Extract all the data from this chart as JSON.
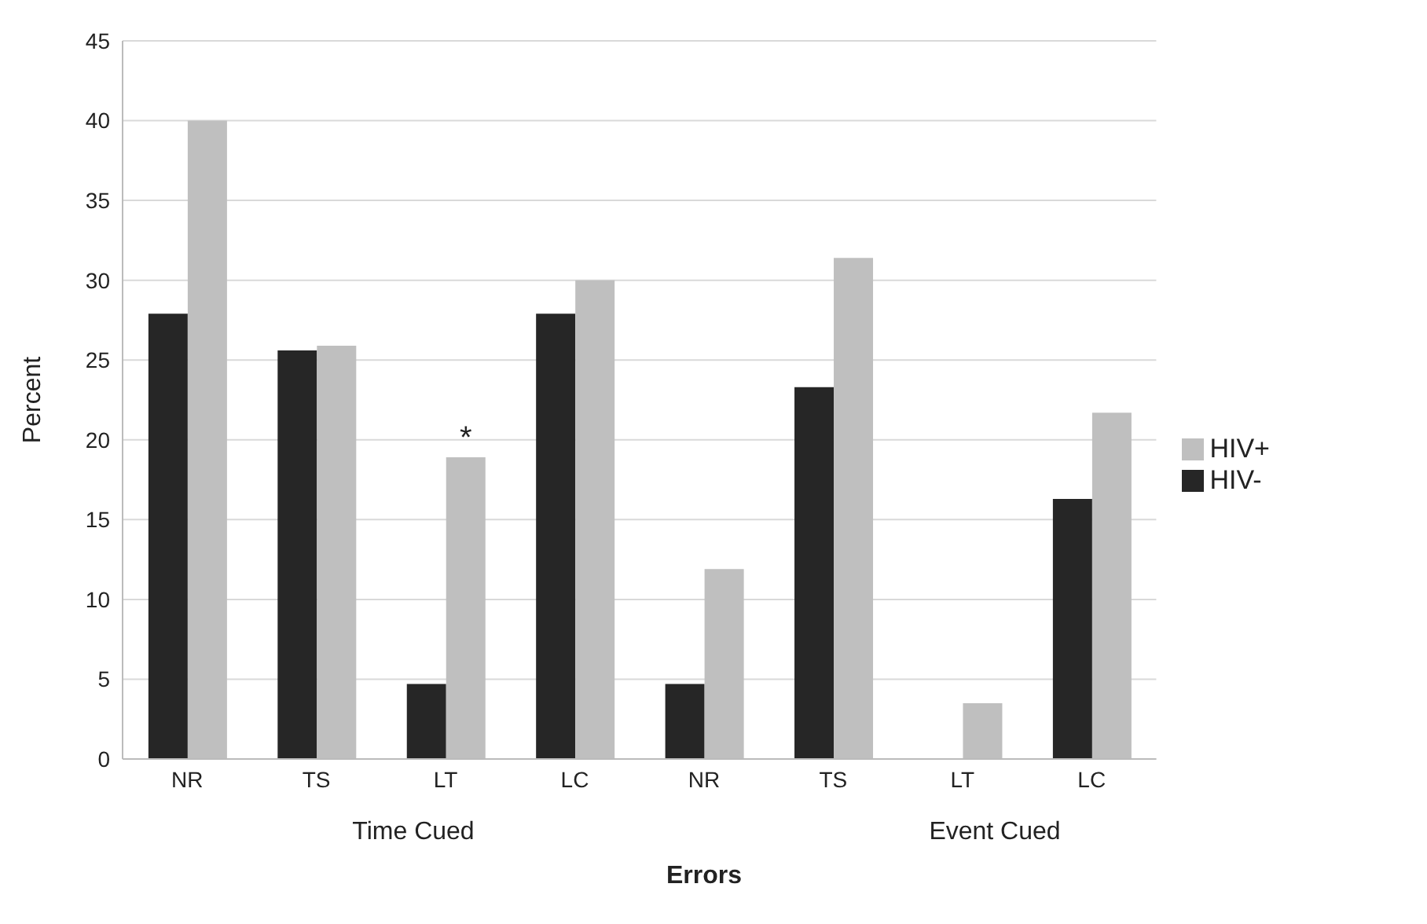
{
  "chart_data": {
    "type": "bar",
    "xlabel": "Errors",
    "ylabel": "Percent",
    "categories": [
      "NR",
      "TS",
      "LT",
      "LC",
      "NR",
      "TS",
      "LT",
      "LC"
    ],
    "series": [
      {
        "name": "HIV-",
        "color": "#262626",
        "values": [
          27.9,
          25.6,
          4.7,
          27.9,
          4.7,
          23.3,
          0,
          16.3
        ]
      },
      {
        "name": "HIV+",
        "color": "#bfbfbf",
        "values": [
          40,
          25.9,
          18.9,
          30,
          11.9,
          31.4,
          3.5,
          21.7
        ],
        "value_labels": [
          null,
          null,
          "*",
          null,
          null,
          null,
          null,
          null
        ]
      }
    ],
    "annotations": [
      "Time Cued",
      "Event Cued"
    ],
    "ylim": [
      0,
      45
    ],
    "yticks": [
      0,
      5,
      10,
      15,
      20,
      25,
      30,
      35,
      40,
      45
    ],
    "grid": "y",
    "legend": "right"
  }
}
